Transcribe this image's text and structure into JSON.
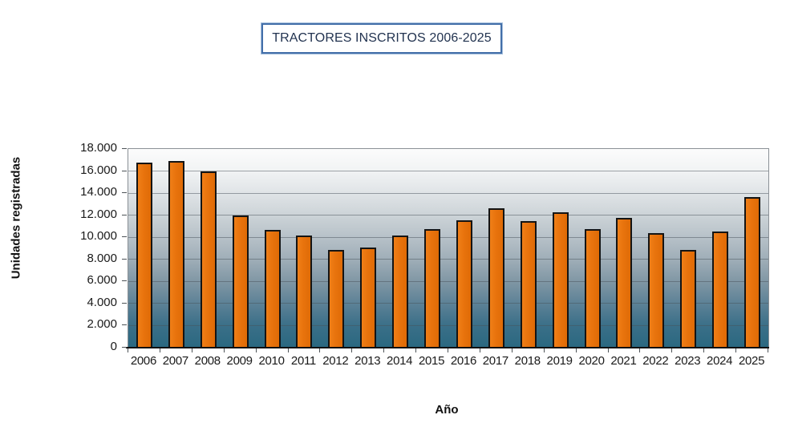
{
  "chart_data": {
    "type": "bar",
    "title": "TRACTORES INSCRITOS 2006-2025",
    "xlabel": "Año",
    "ylabel": "Unidades registradas",
    "ylim": [
      0,
      18000
    ],
    "grid": true,
    "legend": "none",
    "y_ticks": [
      {
        "value": 0,
        "label": "0"
      },
      {
        "value": 2000,
        "label": "2.000"
      },
      {
        "value": 4000,
        "label": "4.000"
      },
      {
        "value": 6000,
        "label": "6.000"
      },
      {
        "value": 8000,
        "label": "8.000"
      },
      {
        "value": 10000,
        "label": "10.000"
      },
      {
        "value": 12000,
        "label": "12.000"
      },
      {
        "value": 14000,
        "label": "14.000"
      },
      {
        "value": 16000,
        "label": "16.000"
      },
      {
        "value": 18000,
        "label": "18.000"
      }
    ],
    "categories": [
      "2006",
      "2007",
      "2008",
      "2009",
      "2010",
      "2011",
      "2012",
      "2013",
      "2014",
      "2015",
      "2016",
      "2017",
      "2018",
      "2019",
      "2020",
      "2021",
      "2022",
      "2023",
      "2024",
      "2025"
    ],
    "values": [
      16600,
      16800,
      15800,
      11800,
      10500,
      10000,
      8700,
      8900,
      10000,
      10600,
      11400,
      12500,
      11300,
      12100,
      10600,
      11600,
      10200,
      8700,
      10400,
      13500
    ],
    "colors": {
      "bar_fill": "#E8730D",
      "bar_border": "#141414",
      "plot_gradient_top": "#FCFCFC",
      "plot_gradient_bottom": "#2A6880",
      "title_border": "#436FA9",
      "gridline": "#48525A"
    }
  }
}
